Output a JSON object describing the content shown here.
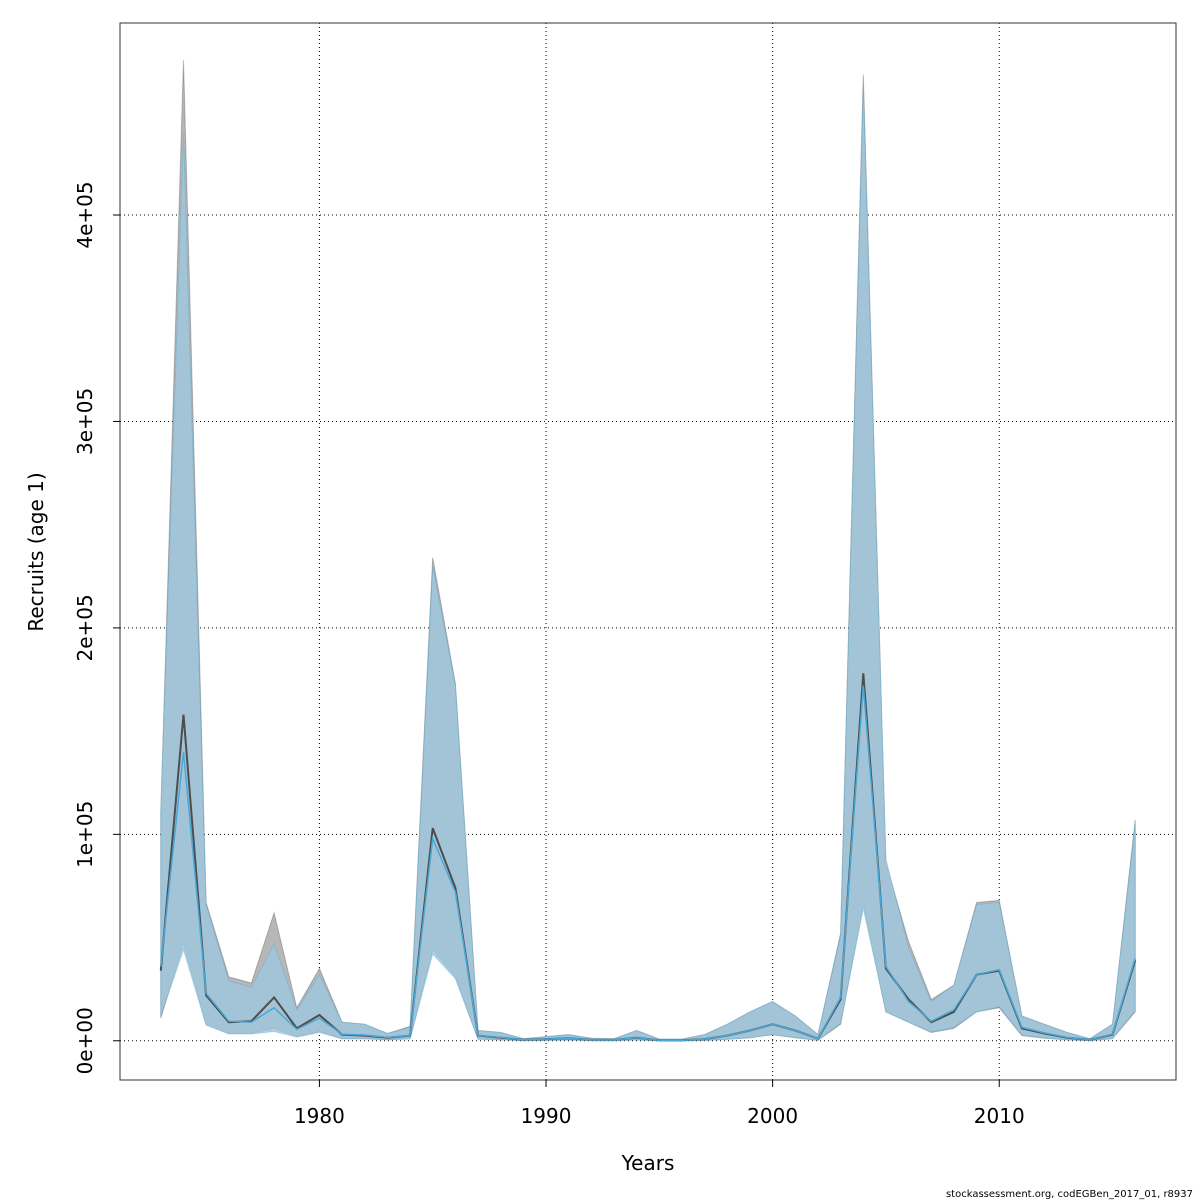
{
  "chart_data": {
    "type": "area",
    "xlabel": "Years",
    "ylabel": "Recruits (age 1)",
    "xlim": [
      1971.2,
      2017.8
    ],
    "ylim": [
      -19000,
      493000
    ],
    "x_ticks": [
      1980,
      1990,
      2000,
      2010
    ],
    "x_tick_labels": [
      "1980",
      "1990",
      "2000",
      "2010"
    ],
    "y_ticks": [
      0,
      100000,
      200000,
      300000,
      400000
    ],
    "y_tick_labels": [
      "0e+00",
      "1e+05",
      "2e+05",
      "3e+05",
      "4e+05"
    ],
    "grid": true,
    "credit": "stockassessment.org, codEGBen_2017_01, r8937",
    "series": [
      {
        "x": [
          1973,
          1974,
          1975,
          1976,
          1977,
          1978,
          1979,
          1980,
          1981,
          1982,
          1983,
          1984,
          1985,
          1986,
          1987,
          1988,
          1989,
          1990,
          1991,
          1992,
          1993,
          1994,
          1995,
          1996,
          1997,
          1998,
          1999,
          2000,
          2001,
          2002,
          2003,
          2004,
          2005,
          2006,
          2007,
          2008,
          2009,
          2010,
          2011,
          2012,
          2013,
          2014,
          2015,
          2016
        ],
        "estimate": [
          34000,
          158000,
          22000,
          9000,
          9500,
          21000,
          6000,
          12500,
          3000,
          2500,
          1500,
          2500,
          103000,
          74000,
          2500,
          1500,
          500,
          800,
          1200,
          500,
          400,
          1500,
          300,
          300,
          800,
          2500,
          5000,
          8000,
          5000,
          1000,
          20000,
          178000,
          35000,
          20000,
          9000,
          14000,
          32000,
          34000,
          6000,
          3500,
          1500,
          500,
          3000,
          39000
        ],
        "lower": [
          11000,
          47000,
          8000,
          3500,
          3500,
          6000,
          2000,
          4500,
          1000,
          1000,
          500,
          1000,
          44000,
          31000,
          800,
          500,
          100,
          200,
          400,
          100,
          100,
          400,
          50,
          50,
          200,
          700,
          1500,
          3000,
          1500,
          200,
          8000,
          66000,
          14000,
          9000,
          4000,
          6000,
          14000,
          16000,
          2500,
          1200,
          500,
          100,
          1000,
          14000
        ],
        "upper": [
          110000,
          475000,
          67000,
          31000,
          28000,
          62000,
          16000,
          35000,
          9000,
          8000,
          3500,
          7000,
          234000,
          173000,
          5000,
          4000,
          1000,
          2000,
          3000,
          1200,
          1000,
          5000,
          800,
          800,
          3000,
          8000,
          14000,
          19000,
          12000,
          3000,
          52000,
          468000,
          86000,
          48000,
          20000,
          27000,
          67000,
          68000,
          12000,
          8000,
          4000,
          1000,
          8000,
          107000
        ]
      },
      {
        "x": [
          1973,
          1974,
          1975,
          1976,
          1977,
          1978,
          1979,
          1980,
          1981,
          1982,
          1983,
          1984,
          1985,
          1986,
          1987,
          1988,
          1989,
          1990,
          1991,
          1992,
          1993,
          1994,
          1995,
          1996,
          1997,
          1998,
          1999,
          2000,
          2001,
          2002,
          2003,
          2004,
          2005,
          2006,
          2007,
          2008,
          2009,
          2010,
          2011,
          2012,
          2013,
          2014,
          2015,
          2016
        ],
        "estimate": [
          36000,
          140000,
          23000,
          9500,
          9000,
          16000,
          5500,
          11000,
          3200,
          2800,
          1600,
          2600,
          98000,
          72000,
          2600,
          1600,
          500,
          800,
          1200,
          500,
          400,
          1500,
          300,
          300,
          800,
          2500,
          5000,
          8000,
          5000,
          1000,
          21000,
          172000,
          36000,
          19000,
          9500,
          15000,
          32000,
          34500,
          6500,
          3800,
          1600,
          500,
          3200,
          40000
        ],
        "lower": [
          12000,
          44000,
          7500,
          3300,
          3300,
          4500,
          1800,
          4000,
          1000,
          900,
          500,
          900,
          42000,
          30000,
          800,
          500,
          100,
          200,
          400,
          100,
          100,
          400,
          50,
          50,
          200,
          700,
          1500,
          3000,
          1500,
          200,
          8500,
          64000,
          14000,
          9000,
          4200,
          6500,
          14000,
          16500,
          2700,
          1300,
          500,
          100,
          1100,
          14500
        ],
        "upper": [
          112000,
          440000,
          66000,
          29000,
          26000,
          47000,
          15000,
          32000,
          9000,
          8000,
          3500,
          6500,
          230000,
          172000,
          5000,
          4000,
          1000,
          2000,
          3000,
          1200,
          1000,
          5000,
          800,
          800,
          3000,
          8000,
          14000,
          19000,
          12000,
          3000,
          51000,
          463000,
          88000,
          45000,
          19000,
          27000,
          66000,
          67000,
          12000,
          8000,
          4000,
          1000,
          8000,
          105000
        ]
      }
    ]
  },
  "colors": {
    "band_1_fill": "#b3b3b3",
    "band_1_line": "#4d4d4d",
    "band_2_fill": "#9ec7dd",
    "band_2_line": "#4aa8d8",
    "grid": "#000000",
    "axis": "#000000"
  }
}
